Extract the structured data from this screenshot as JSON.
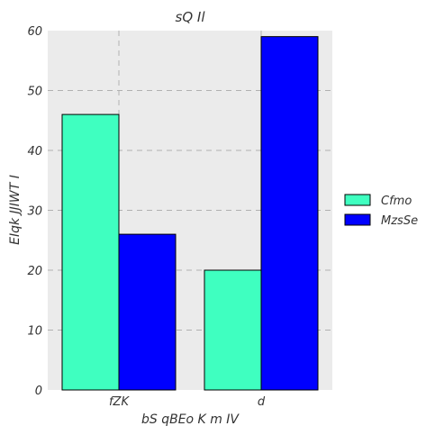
{
  "chart_data": {
    "type": "bar",
    "title": "sQ  Il",
    "xlabel": "bS qBEo K m IV",
    "ylabel": "EIqk JJIWT I",
    "categories": [
      "fZK",
      "d"
    ],
    "series": [
      {
        "name": "Cfmo",
        "values": [
          46,
          20
        ],
        "color": "#3fffc0"
      },
      {
        "name": "MzsSe",
        "values": [
          26,
          59
        ],
        "color": "#0000ff"
      }
    ],
    "ylim": [
      0,
      60
    ],
    "yticks": [
      0,
      10,
      20,
      30,
      40,
      50,
      60
    ],
    "grid": true,
    "legend_position": "right",
    "plot_background": "#ebebeb"
  }
}
